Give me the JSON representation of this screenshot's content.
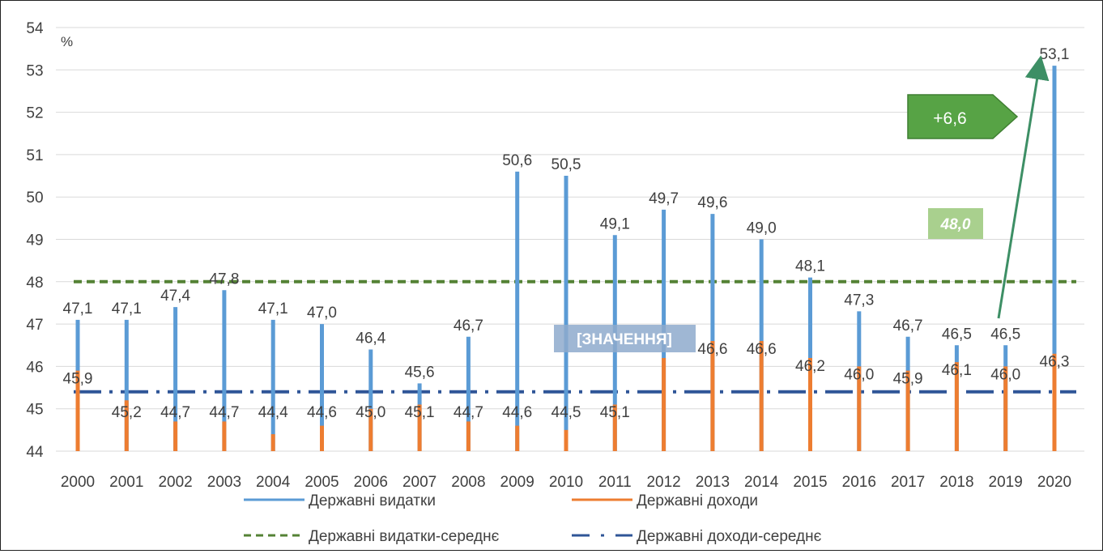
{
  "chart_data": {
    "type": "line",
    "unit_label": "%",
    "categories": [
      "2000",
      "2001",
      "2002",
      "2003",
      "2004",
      "2005",
      "2006",
      "2007",
      "2008",
      "2009",
      "2010",
      "2011",
      "2012",
      "2013",
      "2014",
      "2015",
      "2016",
      "2017",
      "2018",
      "2019",
      "2020"
    ],
    "ylim": [
      44,
      54
    ],
    "y_ticks": [
      44,
      45,
      46,
      47,
      48,
      49,
      50,
      51,
      52,
      53,
      54
    ],
    "grid": true,
    "legend_position": "bottom",
    "series": [
      {
        "name": "Державні видатки",
        "color": "#5b9bd5",
        "labels": [
          "47,1",
          "47,1",
          "47,4",
          "47,8",
          "47,1",
          "47,0",
          "46,4",
          "45,6",
          "46,7",
          "50,6",
          "50,5",
          "49,1",
          "49,7",
          "49,6",
          "49,0",
          "48,1",
          "47,3",
          "46,7",
          "46,5",
          "46,5",
          "53,1"
        ],
        "values": [
          47.1,
          47.1,
          47.4,
          47.8,
          47.1,
          47.0,
          46.4,
          45.6,
          46.7,
          50.6,
          50.5,
          49.1,
          49.7,
          49.6,
          49.0,
          48.1,
          47.3,
          46.7,
          46.5,
          46.5,
          53.1
        ]
      },
      {
        "name": "Державні доходи",
        "color": "#ed7d31",
        "labels": [
          "45,9",
          "45,2",
          "44,7",
          "44,7",
          "44,4",
          "44,6",
          "45,0",
          "45,1",
          "44,7",
          "44,6",
          "44,5",
          "45,1",
          "",
          "46,6",
          "46,6",
          "46,2",
          "46,0",
          "45,9",
          "46,1",
          "46,0",
          "46,3"
        ],
        "values": [
          45.9,
          45.2,
          44.7,
          44.7,
          44.4,
          44.6,
          45.0,
          45.1,
          44.7,
          44.6,
          44.5,
          45.1,
          46.2,
          46.6,
          46.6,
          46.2,
          46.0,
          45.9,
          46.1,
          46.0,
          46.3
        ]
      }
    ],
    "reference_lines": [
      {
        "name": "Державні видатки-середнє",
        "value": 48.0,
        "color": "#548235",
        "style": "dashed"
      },
      {
        "name": "Державні доходи-середнє",
        "value": 45.4,
        "color": "#2f5597",
        "style": "dash-dot"
      }
    ],
    "annotations": {
      "placeholder": "[ЗНАЧЕННЯ]",
      "average_value": "48,0",
      "difference": "+6,6"
    }
  }
}
